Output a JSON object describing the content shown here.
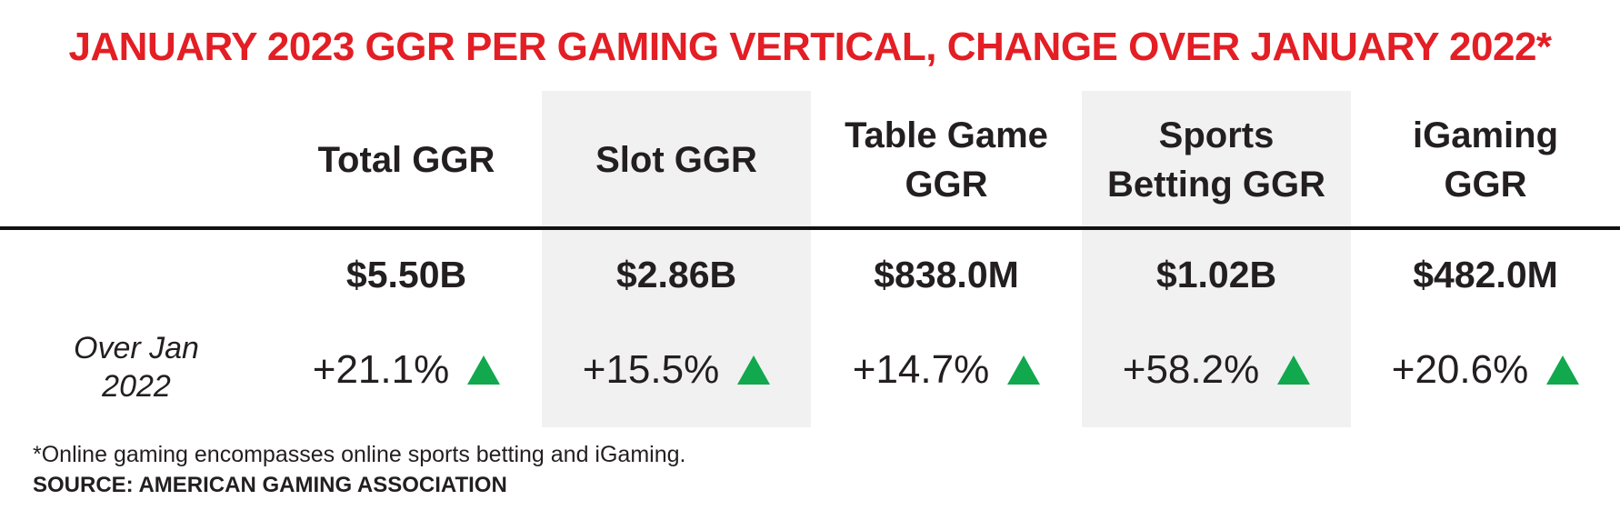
{
  "chart_data": {
    "type": "table",
    "title": "JANUARY 2023 GGR PER GAMING VERTICAL, CHANGE OVER JANUARY 2022*",
    "columns": [
      {
        "header": "Total GGR",
        "value": "$5.50B",
        "change": "+21.1%",
        "change_direction": "up"
      },
      {
        "header": "Slot GGR",
        "value": "$2.86B",
        "change": "+15.5%",
        "change_direction": "up"
      },
      {
        "header": "Table Game GGR",
        "value": "$838.0M",
        "change": "+14.7%",
        "change_direction": "up"
      },
      {
        "header": "Sports Betting GGR",
        "value": "$1.02B",
        "change": "+58.2%",
        "change_direction": "up"
      },
      {
        "header": "iGaming GGR",
        "value": "$482.0M",
        "change": "+20.6%",
        "change_direction": "up"
      }
    ],
    "change_row_label": "Over Jan 2022",
    "footnote": "*Online gaming encompasses online sports betting and iGaming.",
    "source": "SOURCE: AMERICAN GAMING ASSOCIATION"
  },
  "colors": {
    "title": "#e31e24",
    "shaded_column": "#f1f1f1",
    "up_arrow": "#11a84e",
    "text": "#231f20"
  },
  "icons": {
    "change_indicator": "triangle-up-icon"
  }
}
